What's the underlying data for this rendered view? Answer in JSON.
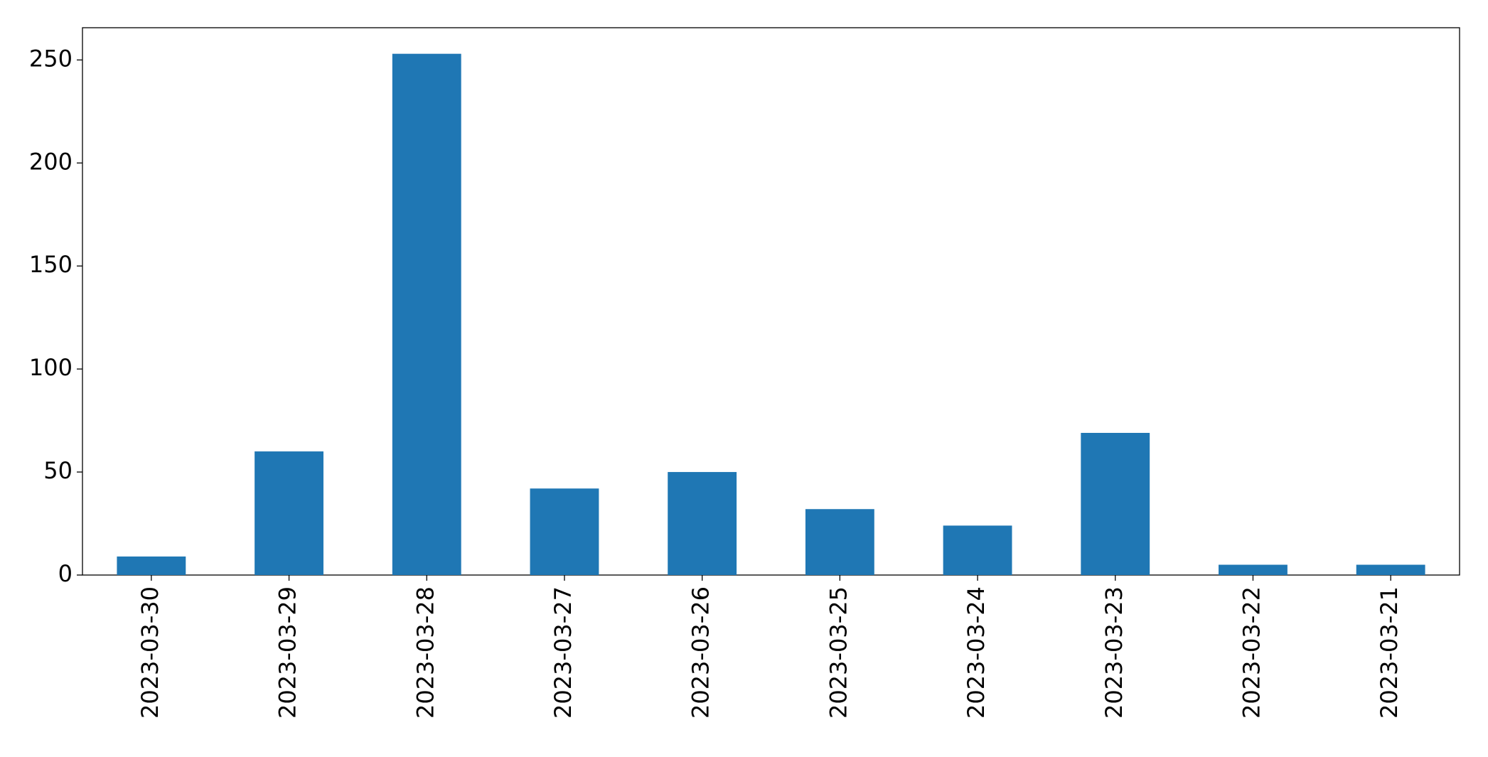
{
  "chart_data": {
    "type": "bar",
    "categories": [
      "2023-03-30",
      "2023-03-29",
      "2023-03-28",
      "2023-03-27",
      "2023-03-26",
      "2023-03-25",
      "2023-03-24",
      "2023-03-23",
      "2023-03-22",
      "2023-03-21"
    ],
    "values": [
      9,
      60,
      253,
      42,
      50,
      32,
      24,
      69,
      5,
      5
    ],
    "color": "#1f77b4",
    "ylim": [
      0,
      265.65
    ],
    "yticks": [
      0,
      50,
      100,
      150,
      200,
      250
    ],
    "grid": false
  }
}
